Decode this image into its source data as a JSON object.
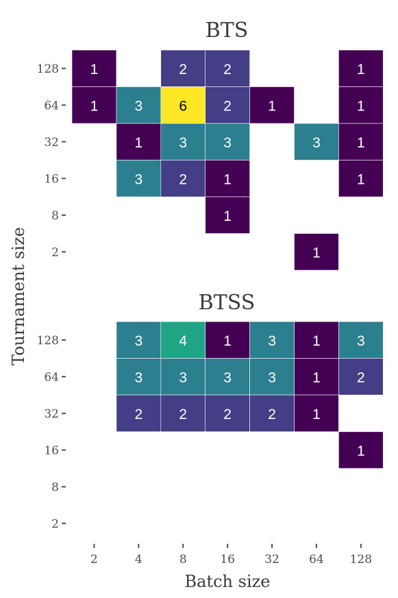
{
  "chart_data": {
    "type": "heatmap",
    "xlabel": "Batch size",
    "ylabel": "Tournament size",
    "x_categories": [
      "2",
      "4",
      "8",
      "16",
      "32",
      "64",
      "128"
    ],
    "y_categories": [
      "2",
      "8",
      "16",
      "32",
      "64",
      "128"
    ],
    "color_scale": "viridis",
    "color_range": [
      1,
      6
    ],
    "panels": [
      {
        "title": "BTS",
        "cells": [
          {
            "x": "2",
            "y": "128",
            "value": 1
          },
          {
            "x": "8",
            "y": "128",
            "value": 2
          },
          {
            "x": "16",
            "y": "128",
            "value": 2
          },
          {
            "x": "128",
            "y": "128",
            "value": 1
          },
          {
            "x": "2",
            "y": "64",
            "value": 1
          },
          {
            "x": "4",
            "y": "64",
            "value": 3
          },
          {
            "x": "8",
            "y": "64",
            "value": 6
          },
          {
            "x": "16",
            "y": "64",
            "value": 2
          },
          {
            "x": "32",
            "y": "64",
            "value": 1
          },
          {
            "x": "128",
            "y": "64",
            "value": 1
          },
          {
            "x": "4",
            "y": "32",
            "value": 1
          },
          {
            "x": "8",
            "y": "32",
            "value": 3
          },
          {
            "x": "16",
            "y": "32",
            "value": 3
          },
          {
            "x": "64",
            "y": "32",
            "value": 3
          },
          {
            "x": "128",
            "y": "32",
            "value": 1
          },
          {
            "x": "4",
            "y": "16",
            "value": 3
          },
          {
            "x": "8",
            "y": "16",
            "value": 2
          },
          {
            "x": "16",
            "y": "16",
            "value": 1
          },
          {
            "x": "128",
            "y": "16",
            "value": 1
          },
          {
            "x": "16",
            "y": "8",
            "value": 1
          },
          {
            "x": "64",
            "y": "2",
            "value": 1
          }
        ]
      },
      {
        "title": "BTSS",
        "cells": [
          {
            "x": "4",
            "y": "128",
            "value": 3
          },
          {
            "x": "8",
            "y": "128",
            "value": 4
          },
          {
            "x": "16",
            "y": "128",
            "value": 1
          },
          {
            "x": "32",
            "y": "128",
            "value": 3
          },
          {
            "x": "64",
            "y": "128",
            "value": 1
          },
          {
            "x": "128",
            "y": "128",
            "value": 3
          },
          {
            "x": "4",
            "y": "64",
            "value": 3
          },
          {
            "x": "8",
            "y": "64",
            "value": 3
          },
          {
            "x": "16",
            "y": "64",
            "value": 3
          },
          {
            "x": "32",
            "y": "64",
            "value": 3
          },
          {
            "x": "64",
            "y": "64",
            "value": 1
          },
          {
            "x": "128",
            "y": "64",
            "value": 2
          },
          {
            "x": "4",
            "y": "32",
            "value": 2
          },
          {
            "x": "8",
            "y": "32",
            "value": 2
          },
          {
            "x": "16",
            "y": "32",
            "value": 2
          },
          {
            "x": "32",
            "y": "32",
            "value": 2
          },
          {
            "x": "64",
            "y": "32",
            "value": 1
          },
          {
            "x": "128",
            "y": "16",
            "value": 1
          }
        ]
      }
    ],
    "value_colors": {
      "1": "#440154",
      "2": "#433e85",
      "3": "#2c7f8e",
      "4": "#20a486",
      "6": "#fde725"
    },
    "grid": false,
    "legend": "none"
  }
}
